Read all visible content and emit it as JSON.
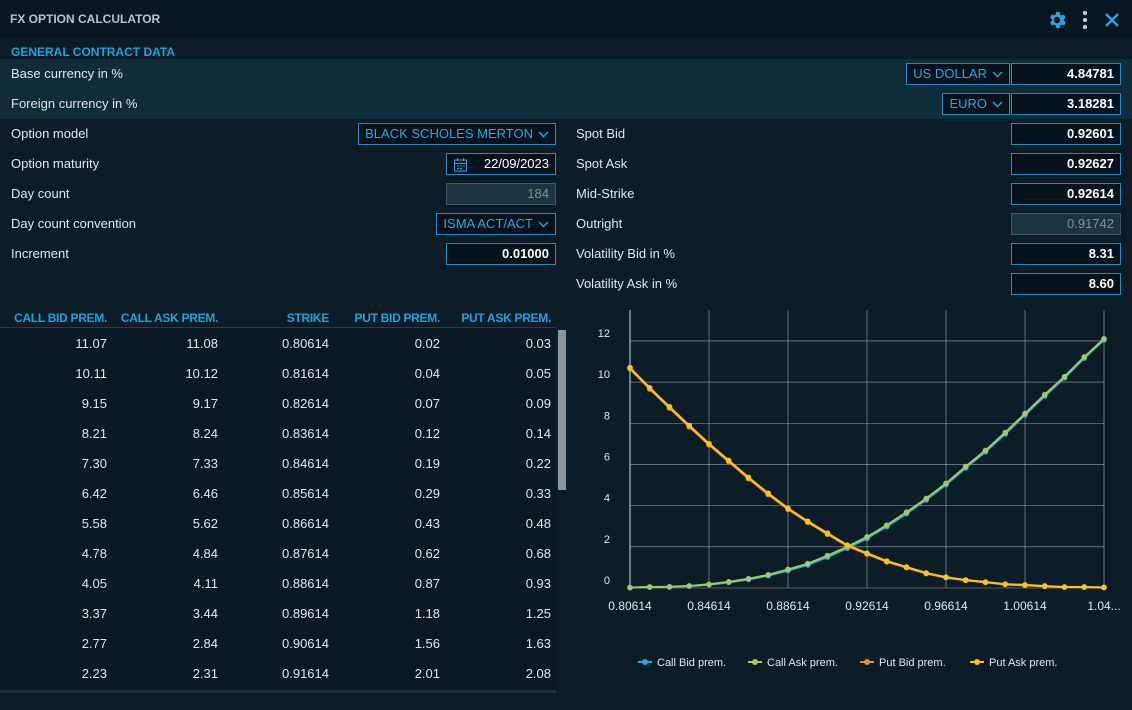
{
  "header": {
    "title": "FX OPTION CALCULATOR"
  },
  "section_title": "GENERAL CONTRACT DATA",
  "currency_rows": [
    {
      "label": "Base currency in %",
      "select": "US DOLLAR",
      "value": "4.84781"
    },
    {
      "label": "Foreign currency in %",
      "select": "EURO",
      "value": "3.18281"
    }
  ],
  "left_fields": [
    {
      "label": "Option model",
      "select": "BLACK SCHOLES MERTON"
    },
    {
      "label": "Option maturity",
      "date": "22/09/2023"
    },
    {
      "label": "Day count",
      "value": "184",
      "disabled": true
    },
    {
      "label": "Day count convention",
      "select": "ISMA ACT/ACT"
    },
    {
      "label": "Increment",
      "value": "0.01000"
    }
  ],
  "right_fields": [
    {
      "label": "Spot Bid",
      "value": "0.92601"
    },
    {
      "label": "Spot Ask",
      "value": "0.92627"
    },
    {
      "label": "Mid-Strike",
      "value": "0.92614"
    },
    {
      "label": "Outright",
      "value": "0.91742",
      "disabled": true
    },
    {
      "label": "Volatility Bid in %",
      "value": "8.31"
    },
    {
      "label": "Volatility Ask in %",
      "value": "8.60"
    }
  ],
  "table": {
    "columns": [
      "CALL BID PREM.",
      "CALL ASK PREM.",
      "STRIKE",
      "PUT BID PREM.",
      "PUT ASK PREM."
    ],
    "rows": [
      [
        "11.07",
        "11.08",
        "0.80614",
        "0.02",
        "0.03"
      ],
      [
        "10.11",
        "10.12",
        "0.81614",
        "0.04",
        "0.05"
      ],
      [
        "9.15",
        "9.17",
        "0.82614",
        "0.07",
        "0.09"
      ],
      [
        "8.21",
        "8.24",
        "0.83614",
        "0.12",
        "0.14"
      ],
      [
        "7.30",
        "7.33",
        "0.84614",
        "0.19",
        "0.22"
      ],
      [
        "6.42",
        "6.46",
        "0.85614",
        "0.29",
        "0.33"
      ],
      [
        "5.58",
        "5.62",
        "0.86614",
        "0.43",
        "0.48"
      ],
      [
        "4.78",
        "4.84",
        "0.87614",
        "0.62",
        "0.68"
      ],
      [
        "4.05",
        "4.11",
        "0.88614",
        "0.87",
        "0.93"
      ],
      [
        "3.37",
        "3.44",
        "0.89614",
        "1.18",
        "1.25"
      ],
      [
        "2.77",
        "2.84",
        "0.90614",
        "1.56",
        "1.63"
      ],
      [
        "2.23",
        "2.31",
        "0.91614",
        "2.01",
        "2.08"
      ]
    ]
  },
  "chart_data": {
    "type": "line",
    "x": [
      0.80614,
      0.81614,
      0.82614,
      0.83614,
      0.84614,
      0.85614,
      0.86614,
      0.87614,
      0.88614,
      0.89614,
      0.90614,
      0.91614,
      0.92614,
      0.93614,
      0.94614,
      0.95614,
      0.96614,
      0.97614,
      0.98614,
      0.99614,
      1.00614,
      1.01614,
      1.02614,
      1.03614,
      1.04614
    ],
    "series": [
      {
        "name": "Call Bid prem.",
        "color": "#2aa8d8",
        "values": [
          0.02,
          0.04,
          0.05,
          0.09,
          0.16,
          0.27,
          0.41,
          0.6,
          0.85,
          1.12,
          1.5,
          1.93,
          2.41,
          2.98,
          3.61,
          4.28,
          5.01,
          5.83,
          6.61,
          7.48,
          8.4,
          9.32,
          10.2,
          11.16,
          12.04
        ]
      },
      {
        "name": "Call Ask prem.",
        "color": "#9ccc65",
        "values": [
          0.02,
          0.05,
          0.06,
          0.1,
          0.18,
          0.3,
          0.45,
          0.64,
          0.9,
          1.18,
          1.57,
          2.0,
          2.48,
          3.05,
          3.68,
          4.35,
          5.08,
          5.9,
          6.68,
          7.55,
          8.47,
          9.39,
          10.26,
          11.22,
          12.1
        ]
      },
      {
        "name": "Put Bid prem.",
        "color": "#f28a2a",
        "values": [
          10.64,
          9.66,
          8.74,
          7.83,
          6.95,
          6.13,
          5.31,
          4.54,
          3.82,
          3.19,
          2.61,
          2.04,
          1.65,
          1.27,
          0.99,
          0.7,
          0.5,
          0.37,
          0.27,
          0.17,
          0.13,
          0.08,
          0.04,
          0.04,
          0.02
        ]
      },
      {
        "name": "Put Ask prem.",
        "color": "#f7c325",
        "values": [
          10.7,
          9.72,
          8.8,
          7.89,
          7.01,
          6.19,
          5.37,
          4.6,
          3.87,
          3.24,
          2.66,
          2.08,
          1.69,
          1.31,
          1.02,
          0.73,
          0.53,
          0.39,
          0.29,
          0.19,
          0.15,
          0.1,
          0.05,
          0.05,
          0.03
        ]
      }
    ],
    "xlim": [
      0.80614,
      1.04614
    ],
    "xticks": [
      0.80614,
      0.84614,
      0.88614,
      0.92614,
      0.96614,
      1.00614,
      {
        "value": 1.04614,
        "label": "1.04..."
      }
    ],
    "ylim": [
      0,
      13.5
    ],
    "yticks": [
      0,
      2,
      4,
      6,
      8,
      10,
      12
    ],
    "grid": true
  }
}
